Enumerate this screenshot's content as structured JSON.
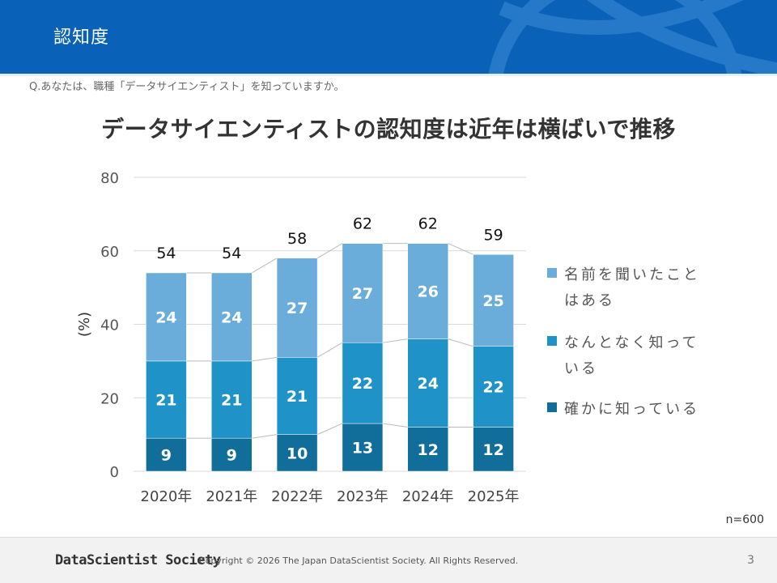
{
  "header": {
    "title": "認知度"
  },
  "question": "Q.あなたは、職種「データサイエンティスト」を知っていますか。",
  "headline": "データサイエンティストの認知度は近年は横ばいで推移",
  "colors": {
    "header_bg": "#0a62b8",
    "series_dark": "#116d99",
    "series_mid": "#1f93c8",
    "series_light": "#6badda",
    "connector": "#bbbbbb"
  },
  "chart_data": {
    "type": "bar",
    "stacked": true,
    "categories": [
      "2020年",
      "2021年",
      "2022年",
      "2023年",
      "2024年",
      "2025年"
    ],
    "series": [
      {
        "name": "確かに知っている",
        "values": [
          9,
          9,
          10,
          13,
          12,
          12
        ]
      },
      {
        "name": "なんとなく知っている",
        "values": [
          21,
          21,
          21,
          22,
          24,
          22
        ]
      },
      {
        "name": "名前を聞いたことはある",
        "values": [
          24,
          24,
          27,
          27,
          26,
          25
        ]
      }
    ],
    "totals": [
      54,
      54,
      58,
      62,
      62,
      59
    ],
    "ylabel": "(%)",
    "ylim": [
      0,
      80
    ],
    "yticks": [
      0,
      20,
      40,
      60,
      80
    ],
    "grid": true,
    "legend": "right"
  },
  "legend": [
    {
      "label": "名前を聞いたことはある",
      "icon": "square"
    },
    {
      "label": "なんとなく知っている",
      "icon": "square"
    },
    {
      "label": "確かに知っている",
      "icon": "square"
    }
  ],
  "sample_size": "n=600",
  "footer": {
    "logo": "DataScientist Society",
    "copyright": "Copyright © 2026  The Japan DataScientist Society. All Rights Reserved.",
    "page": "3"
  }
}
